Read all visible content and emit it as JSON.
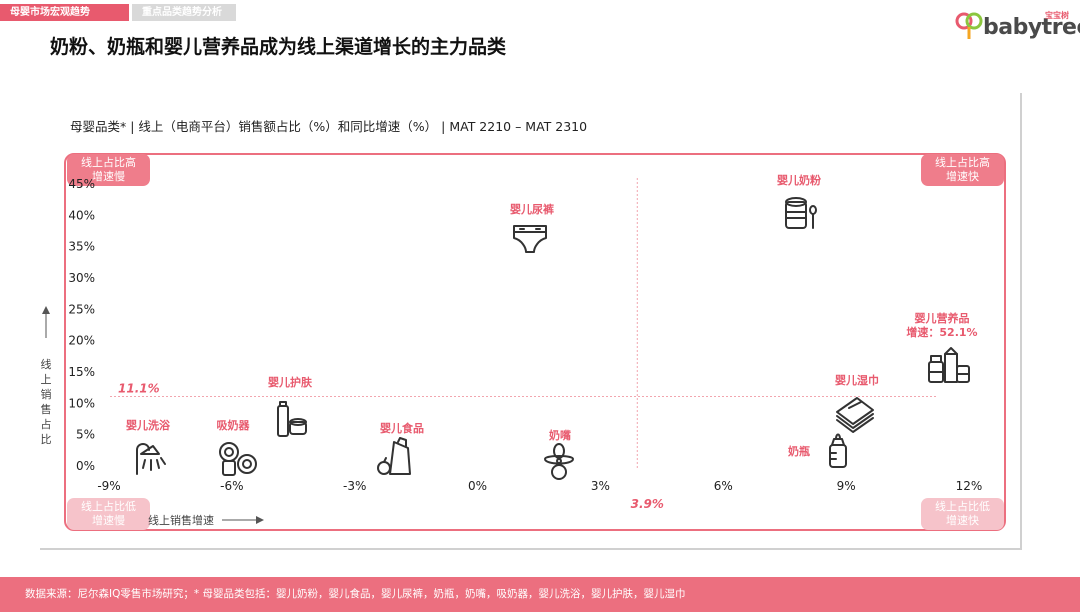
{
  "tabs": [
    "母婴市场宏观趋势",
    "重点品类趋势分析"
  ],
  "logo": {
    "text": "babytree",
    "sub": "宝宝树"
  },
  "page_title": "奶粉、奶瓶和婴儿营养品成为线上渠道增长的主力品类",
  "chart_subtitle": "母婴品类* | 线上（电商平台）销售额占比（%）和同比增速（%） | MAT 2210 – MAT 2310",
  "corners": {
    "top_left": "线上占比高\n增速慢",
    "top_right": "线上占比高\n增速快",
    "bottom_left": "线上占比低\n增速慢",
    "bottom_right": "线上占比低\n增速快"
  },
  "axis_labels": {
    "y": "线上销售占比",
    "x": "线上销售增速"
  },
  "footer": "数据来源：尼尔森IQ零售市场研究；* 母婴品类包括：婴儿奶粉，婴儿食品，婴儿尿裤，奶瓶，奶嘴，吸奶器，婴儿洗浴，婴儿护肤，婴儿湿巾",
  "colors": {
    "accent": "#e85a6e",
    "frame": "#ec6f7f",
    "icon": "#333333"
  },
  "chart_data": {
    "type": "scatter",
    "xlim": [
      -9,
      12
    ],
    "ylim": [
      0,
      45
    ],
    "x_ticks": [
      "-9%",
      "-6%",
      "-3%",
      "0%",
      "3%",
      "6%",
      "9%",
      "12%"
    ],
    "x_tick_values": [
      -9,
      -6,
      -3,
      0,
      3,
      6,
      9,
      12
    ],
    "y_ticks": [
      "0%",
      "5%",
      "10%",
      "15%",
      "20%",
      "25%",
      "30%",
      "35%",
      "40%",
      "45%"
    ],
    "y_tick_values": [
      0,
      5,
      10,
      15,
      20,
      25,
      30,
      35,
      40,
      45
    ],
    "reference_lines": {
      "y": 11.1,
      "y_label": "11.1%",
      "x": 3.9,
      "x_label": "3.9%"
    },
    "points": [
      {
        "name": "婴儿奶粉",
        "x": 8.5,
        "y": 40,
        "icon": "milk-powder-can-icon"
      },
      {
        "name": "婴儿尿裤",
        "x": 1.3,
        "y": 36,
        "icon": "diaper-icon"
      },
      {
        "name": "婴儿营养品",
        "note": "增速：52.1%",
        "x": 12,
        "y": 16,
        "icon": "nutrition-products-icon"
      },
      {
        "name": "婴儿湿巾",
        "x": 9.2,
        "y": 8,
        "icon": "wet-wipes-icon"
      },
      {
        "name": "奶瓶",
        "x": 8.8,
        "y": 2.5,
        "icon": "feeding-bottle-icon"
      },
      {
        "name": "奶嘴",
        "x": 2.0,
        "y": 1.5,
        "icon": "pacifier-icon"
      },
      {
        "name": "婴儿食品",
        "x": -2.2,
        "y": 2.5,
        "icon": "baby-food-icon"
      },
      {
        "name": "婴儿护肤",
        "x": -4.7,
        "y": 7,
        "icon": "skin-care-icon"
      },
      {
        "name": "吸奶器",
        "x": -6.0,
        "y": 1.5,
        "icon": "breast-pump-icon"
      },
      {
        "name": "婴儿洗浴",
        "x": -8.0,
        "y": 1.5,
        "icon": "shower-icon"
      }
    ]
  }
}
